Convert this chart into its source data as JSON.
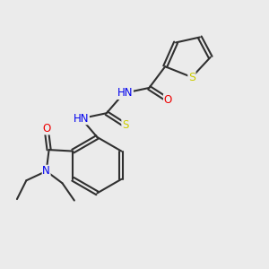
{
  "bg_color": "#ebebeb",
  "atom_colors": {
    "C": "#303030",
    "H": "#303030",
    "N": "#0000ee",
    "O": "#ee0000",
    "S": "#cccc00"
  },
  "bond_color": "#303030",
  "bond_width": 1.5,
  "font_size": 8.5
}
